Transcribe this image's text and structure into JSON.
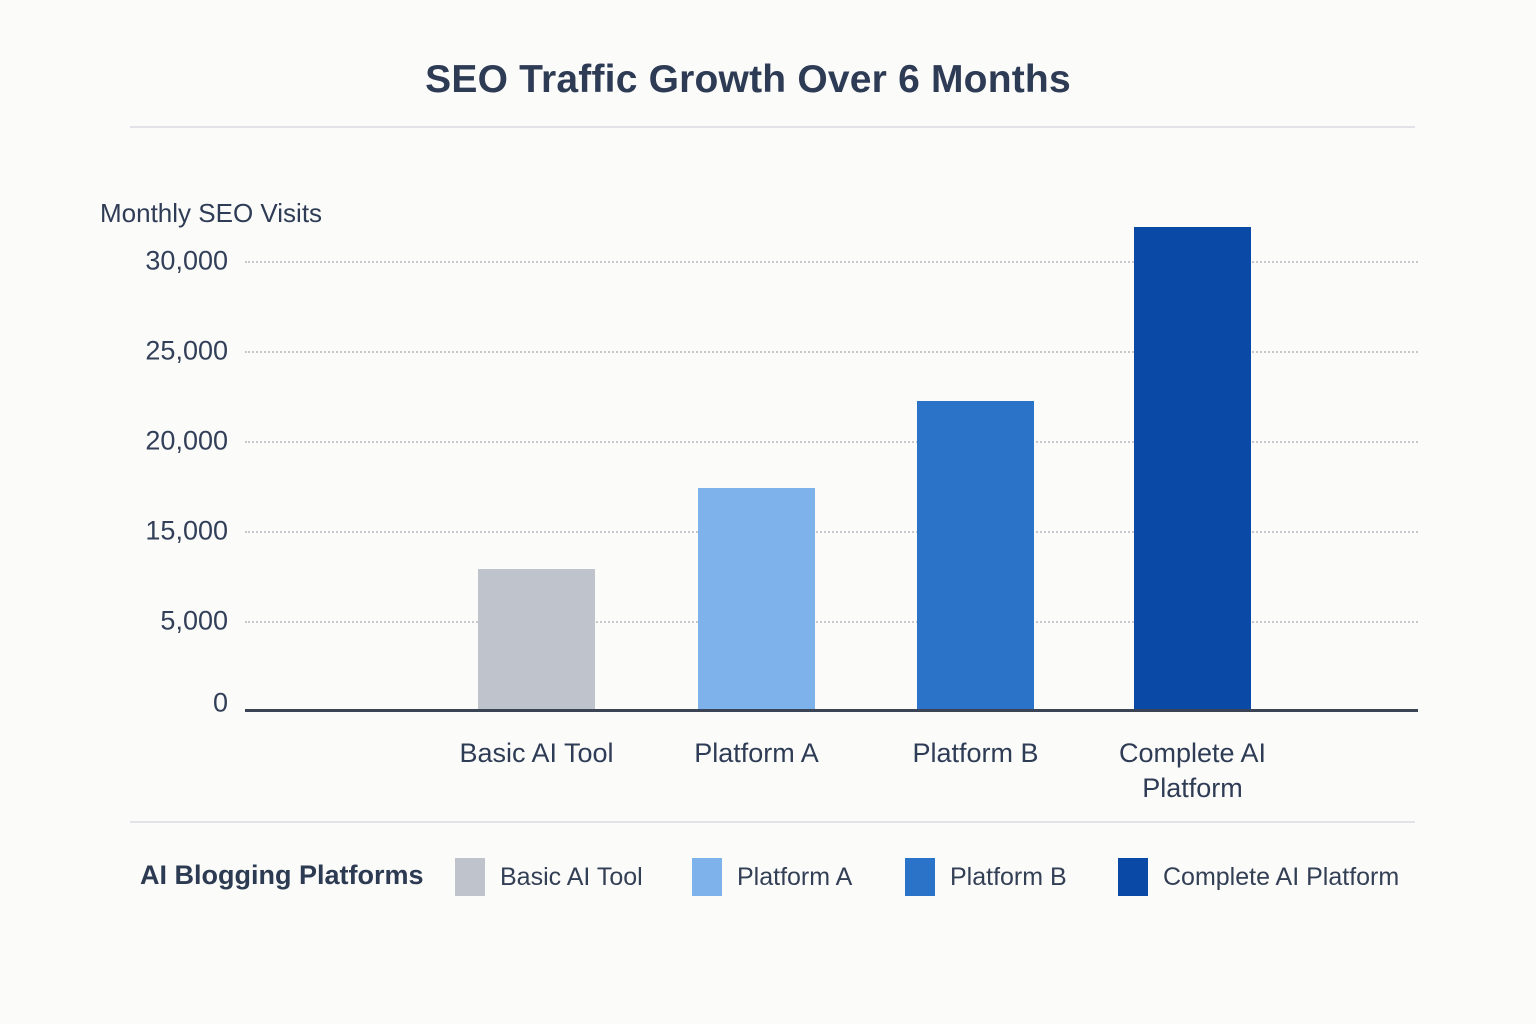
{
  "chart_data": {
    "type": "bar",
    "title": "SEO Traffic Growth Over 6 Months",
    "y_axis_title": "Monthly SEO Visits",
    "xlabel": "",
    "ylabel": "Monthly SEO Visits",
    "categories": [
      "Basic AI Tool",
      "Platform A",
      "Platform B",
      "Complete AI Platform"
    ],
    "values": [
      11000,
      17500,
      22300,
      32000
    ],
    "bar_colors": [
      "#bfc3cb",
      "#7db2eb",
      "#2a73c8",
      "#0a49a6"
    ],
    "y_tick_labels_top_to_bottom": [
      "30,000",
      "25,000",
      "20,000",
      "15,000",
      "5,000",
      "0"
    ],
    "ylim": [
      0,
      30000
    ],
    "grid": "horizontal-dotted",
    "render_heights_frac": [
      0.316,
      0.496,
      0.689,
      1.076
    ],
    "legend": {
      "position": "bottom",
      "title": "AI Blogging Platforms",
      "items": [
        {
          "label": "Basic AI Tool",
          "color": "#bfc3cb"
        },
        {
          "label": "Platform A",
          "color": "#7db2eb"
        },
        {
          "label": "Platform B",
          "color": "#2a73c8"
        },
        {
          "label": "Complete AI Platform",
          "color": "#0a49a6"
        }
      ]
    }
  },
  "colors": {
    "background": "#fbfbfa",
    "title_text": "#2e3b55",
    "axis_text": "#323f58",
    "axis_line": "#3b4454",
    "gridline": "#c7c7cd",
    "divider": "#e2e2e8"
  }
}
